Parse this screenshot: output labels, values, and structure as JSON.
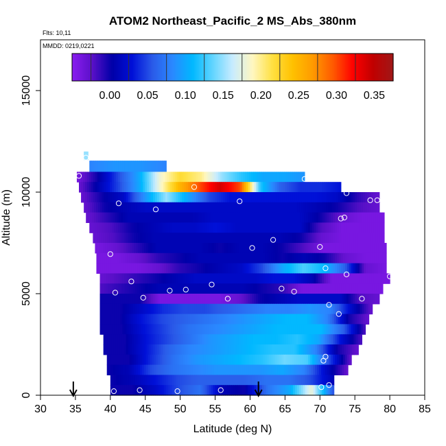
{
  "chart_data": {
    "type": "heatmap",
    "title": "ATOM2 Northeast_Pacific_2 MS_Abs_380nm",
    "flights_label": "Flts: 10,11",
    "date_label": "MMDD: 0219,0221",
    "xlabel": "Latitude (deg N)",
    "ylabel": "Altitude (m)",
    "xlim": [
      30,
      85
    ],
    "ylim": [
      0,
      17500
    ],
    "x_ticks": [
      "30",
      "35",
      "40",
      "45",
      "50",
      "55",
      "60",
      "65",
      "70",
      "75",
      "80",
      "85"
    ],
    "y_ticks": [
      "0",
      "5000",
      "10000",
      "15000"
    ],
    "colorbar": {
      "range": [
        -0.05,
        0.375
      ],
      "ticks": [
        "0.00",
        "0.05",
        "0.10",
        "0.15",
        "0.20",
        "0.25",
        "0.30",
        "0.35"
      ],
      "colors": [
        "#8a1cf0",
        "#5a10c8",
        "#0000a8",
        "#0010d8",
        "#2a5ae8",
        "#2a88ff",
        "#00b8ff",
        "#60d4ff",
        "#c8ecff",
        "#fff7c0",
        "#ffe040",
        "#ffc000",
        "#ff9a00",
        "#ff5a00",
        "#ff0000",
        "#c00000",
        "#a01818"
      ]
    },
    "layers": [
      {
        "alt_bottom": 11600,
        "alt_top": 12000,
        "lat_start": 36.2,
        "lat_end": 36.8,
        "values": [
          0.15
        ]
      },
      {
        "alt_bottom": 11000,
        "alt_top": 11550,
        "lat_start": 37.0,
        "lat_end": 48.0,
        "values": [
          0.08,
          0.09,
          0.09,
          0.08
        ]
      },
      {
        "alt_bottom": 10500,
        "alt_top": 11000,
        "lat_start": 35.2,
        "lat_end": 67.8,
        "values": [
          -0.04,
          0.0,
          0.05,
          0.1,
          0.18,
          0.22,
          0.2,
          0.15,
          0.12,
          0.1,
          0.1,
          0.09
        ]
      },
      {
        "alt_bottom": 10000,
        "alt_top": 10500,
        "lat_start": 35.5,
        "lat_end": 73.0,
        "values": [
          -0.03,
          0.01,
          0.05,
          0.1,
          0.18,
          0.25,
          0.3,
          0.34,
          0.3,
          0.12,
          0.06,
          0.04,
          0.04,
          0.03
        ]
      },
      {
        "alt_bottom": 9500,
        "alt_top": 10000,
        "lat_start": 35.8,
        "lat_end": 78.5,
        "values": [
          -0.03,
          0.0,
          0.02,
          0.09,
          0.15,
          0.1,
          0.05,
          0.03,
          0.03,
          0.03,
          0.03,
          0.03,
          0.02,
          -0.01,
          -0.03
        ]
      },
      {
        "alt_bottom": 9000,
        "alt_top": 9500,
        "lat_start": 36.2,
        "lat_end": 78.5,
        "values": [
          -0.03,
          0.0,
          0.01,
          0.02,
          0.02,
          0.02,
          0.02,
          0.02,
          0.02,
          0.02,
          0.02,
          0.01,
          0.0,
          -0.02,
          -0.03
        ]
      },
      {
        "alt_bottom": 8500,
        "alt_top": 9000,
        "lat_start": 36.5,
        "lat_end": 79.2,
        "values": [
          -0.03,
          -0.01,
          0.01,
          0.01,
          0.01,
          0.01,
          0.02,
          0.02,
          0.02,
          0.02,
          0.02,
          0.0,
          -0.03,
          -0.04,
          -0.04
        ]
      },
      {
        "alt_bottom": 8000,
        "alt_top": 8500,
        "lat_start": 37.0,
        "lat_end": 79.2,
        "values": [
          -0.03,
          -0.02,
          0.0,
          0.01,
          0.02,
          0.02,
          0.03,
          0.02,
          0.02,
          0.02,
          0.02,
          -0.02,
          -0.04,
          -0.04,
          -0.04
        ]
      },
      {
        "alt_bottom": 7500,
        "alt_top": 8000,
        "lat_start": 37.5,
        "lat_end": 79.2,
        "values": [
          -0.03,
          -0.02,
          0.0,
          0.01,
          0.01,
          0.01,
          0.01,
          0.01,
          0.01,
          0.01,
          0.0,
          -0.03,
          -0.04,
          -0.04,
          -0.04
        ]
      },
      {
        "alt_bottom": 7000,
        "alt_top": 7500,
        "lat_start": 37.8,
        "lat_end": 79.5,
        "values": [
          -0.04,
          -0.03,
          -0.01,
          0.01,
          0.01,
          0.01,
          0.0,
          0.01,
          0.01,
          0.0,
          -0.02,
          -0.04,
          -0.04,
          -0.04,
          -0.04
        ]
      },
      {
        "alt_bottom": 6500,
        "alt_top": 7000,
        "lat_start": 38.0,
        "lat_end": 79.5,
        "values": [
          -0.04,
          -0.04,
          -0.03,
          -0.01,
          0.0,
          0.01,
          0.01,
          0.01,
          0.01,
          0.0,
          0.01,
          0.0,
          -0.03,
          -0.04,
          -0.04
        ]
      },
      {
        "alt_bottom": 6000,
        "alt_top": 6500,
        "lat_start": 38.0,
        "lat_end": 79.5,
        "values": [
          -0.04,
          -0.04,
          -0.04,
          -0.03,
          -0.01,
          0.0,
          0.01,
          0.02,
          0.05,
          0.1,
          0.13,
          0.11,
          0.06,
          -0.03,
          -0.04
        ]
      },
      {
        "alt_bottom": 5500,
        "alt_top": 6000,
        "lat_start": 38.5,
        "lat_end": 80.0,
        "values": [
          -0.03,
          -0.02,
          -0.01,
          0.0,
          0.01,
          0.02,
          0.02,
          0.02,
          0.02,
          0.03,
          0.03,
          0.01,
          -0.04,
          -0.04,
          -0.04,
          -0.04
        ]
      },
      {
        "alt_bottom": 5000,
        "alt_top": 5500,
        "lat_start": 38.5,
        "lat_end": 79.0,
        "values": [
          -0.02,
          -0.01,
          0.0,
          0.01,
          0.01,
          0.01,
          0.01,
          0.01,
          0.0,
          -0.01,
          -0.04,
          -0.04,
          -0.04,
          -0.04,
          -0.04
        ]
      },
      {
        "alt_bottom": 4500,
        "alt_top": 5000,
        "lat_start": 38.5,
        "lat_end": 78.5,
        "values": [
          0.0,
          0.0,
          0.0,
          -0.04,
          -0.04,
          -0.04,
          -0.04,
          -0.03,
          0.0,
          0.01,
          0.02,
          0.02,
          0.02,
          -0.02,
          -0.03
        ]
      },
      {
        "alt_bottom": 4000,
        "alt_top": 4500,
        "lat_start": 38.5,
        "lat_end": 77.5,
        "values": [
          0.0,
          0.0,
          0.02,
          0.04,
          0.05,
          0.05,
          0.06,
          0.07,
          0.08,
          0.08,
          0.09,
          0.08,
          0.02,
          -0.03
        ]
      },
      {
        "alt_bottom": 3500,
        "alt_top": 4000,
        "lat_start": 38.5,
        "lat_end": 77.0,
        "values": [
          0.0,
          0.0,
          0.03,
          0.05,
          0.06,
          0.07,
          0.08,
          0.09,
          0.1,
          0.11,
          0.11,
          0.08,
          0.0,
          -0.03
        ]
      },
      {
        "alt_bottom": 3000,
        "alt_top": 3500,
        "lat_start": 38.5,
        "lat_end": 76.5,
        "values": [
          0.0,
          0.0,
          0.03,
          0.05,
          0.07,
          0.08,
          0.09,
          0.1,
          0.11,
          0.11,
          0.11,
          0.06,
          -0.02
        ]
      },
      {
        "alt_bottom": 2500,
        "alt_top": 3000,
        "lat_start": 39.0,
        "lat_end": 76.0,
        "values": [
          0.0,
          0.0,
          0.03,
          0.05,
          0.07,
          0.09,
          0.1,
          0.11,
          0.11,
          0.12,
          0.1,
          0.03,
          -0.02
        ]
      },
      {
        "alt_bottom": 2000,
        "alt_top": 2500,
        "lat_start": 39.0,
        "lat_end": 75.5,
        "values": [
          0.0,
          0.0,
          0.03,
          0.06,
          0.08,
          0.09,
          0.1,
          0.11,
          0.12,
          0.12,
          0.08,
          0.0,
          -0.03
        ]
      },
      {
        "alt_bottom": 1500,
        "alt_top": 2000,
        "lat_start": 39.5,
        "lat_end": 74.5,
        "values": [
          0.0,
          0.0,
          0.04,
          0.07,
          0.09,
          0.1,
          0.11,
          0.12,
          0.14,
          0.13,
          0.05,
          -0.03
        ]
      },
      {
        "alt_bottom": 1000,
        "alt_top": 1500,
        "lat_start": 39.5,
        "lat_end": 74.0,
        "values": [
          0.0,
          0.01,
          0.05,
          0.07,
          0.08,
          0.09,
          0.09,
          0.09,
          0.1,
          0.08,
          0.02,
          -0.03
        ]
      },
      {
        "alt_bottom": 500,
        "alt_top": 1000,
        "lat_start": 40.0,
        "lat_end": 72.0,
        "values": [
          0.0,
          0.01,
          0.03,
          0.05,
          0.06,
          0.06,
          0.06,
          0.07,
          0.07,
          0.05,
          0.01
        ]
      },
      {
        "alt_bottom": 0,
        "alt_top": 500,
        "lat_start": 40.0,
        "lat_end": 72.0,
        "values": [
          0.0,
          0.0,
          0.02,
          0.05,
          0.07,
          0.01,
          0.0,
          0.07,
          0.1,
          0.18,
          0.05
        ]
      }
    ],
    "sample_points": [
      [
        36.5,
        11700
      ],
      [
        37.8,
        11800
      ],
      [
        38.8,
        11750
      ],
      [
        35.5,
        10800
      ],
      [
        52.0,
        10250
      ],
      [
        67.8,
        10650
      ],
      [
        73.8,
        9950
      ],
      [
        77.2,
        9600
      ],
      [
        78.2,
        9600
      ],
      [
        41.2,
        9450
      ],
      [
        46.5,
        9150
      ],
      [
        58.5,
        9550
      ],
      [
        73.5,
        8750
      ],
      [
        73.0,
        8700
      ],
      [
        63.3,
        7650
      ],
      [
        60.3,
        7250
      ],
      [
        70.0,
        7300
      ],
      [
        40.0,
        6950
      ],
      [
        70.8,
        6250
      ],
      [
        73.8,
        5950
      ],
      [
        80.0,
        5850
      ],
      [
        43.0,
        5600
      ],
      [
        54.5,
        5450
      ],
      [
        64.5,
        5250
      ],
      [
        66.3,
        5100
      ],
      [
        48.5,
        5150
      ],
      [
        50.8,
        5200
      ],
      [
        40.7,
        5050
      ],
      [
        44.7,
        4800
      ],
      [
        56.8,
        4750
      ],
      [
        76.0,
        4750
      ],
      [
        71.3,
        4450
      ],
      [
        72.7,
        4000
      ],
      [
        70.8,
        1900
      ],
      [
        70.5,
        1700
      ],
      [
        70.2,
        400
      ],
      [
        71.3,
        500
      ],
      [
        40.5,
        200
      ],
      [
        44.2,
        250
      ],
      [
        49.6,
        200
      ],
      [
        55.8,
        250
      ]
    ],
    "arrows_lat": [
      34.7,
      61.2
    ]
  }
}
